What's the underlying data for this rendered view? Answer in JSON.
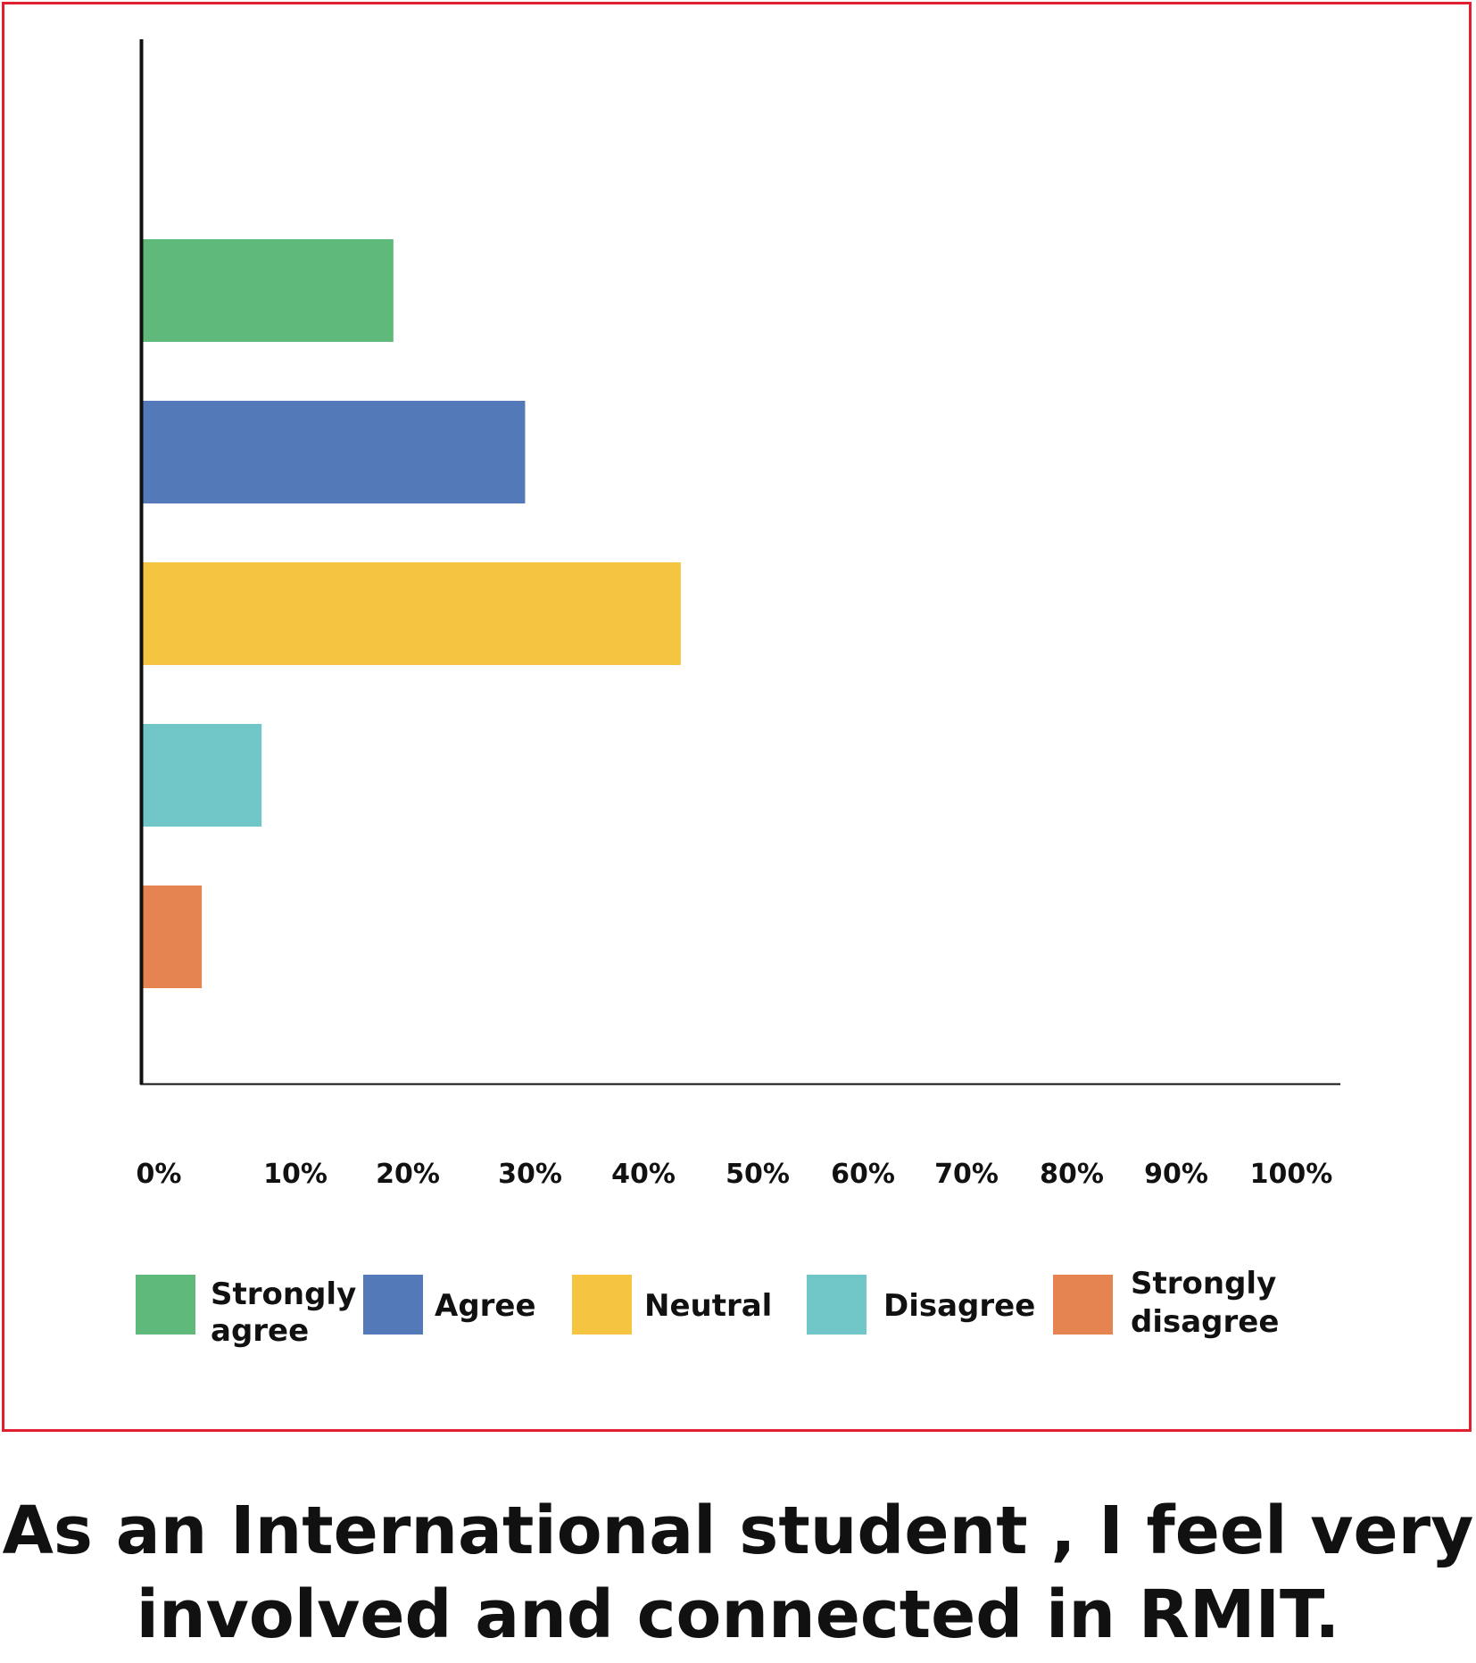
{
  "chart_data": {
    "type": "bar",
    "orientation": "horizontal",
    "title_lines": [
      "As an International student , I feel very",
      "involved and connected in RMIT."
    ],
    "categories": [
      "Strongly agree",
      "Agree",
      "Neutral",
      "Disagree",
      "Strongly disagree"
    ],
    "values": [
      21,
      32,
      45,
      10,
      5
    ],
    "colors": [
      "#5eb97b",
      "#5479b8",
      "#f5c542",
      "#71c6c7",
      "#e58450"
    ],
    "x_ticks": [
      "0%",
      "10%",
      "20%",
      "30%",
      "40%",
      "50%",
      "60%",
      "70%",
      "80%",
      "90%",
      "100%"
    ],
    "xlim": [
      0,
      100
    ],
    "xlabel": "",
    "ylabel": "",
    "grid": false,
    "legend": [
      {
        "lines": [
          "Strongly",
          "agree"
        ],
        "color": "#5eb97b"
      },
      {
        "lines": [
          "Agree"
        ],
        "color": "#5479b8"
      },
      {
        "lines": [
          "Neutral"
        ],
        "color": "#f5c542"
      },
      {
        "lines": [
          "Disagree"
        ],
        "color": "#71c6c7"
      },
      {
        "lines": [
          "Strongly",
          "disagree"
        ],
        "color": "#e58450"
      }
    ],
    "legend_position": "bottom",
    "frame_color": "#e0202f"
  }
}
